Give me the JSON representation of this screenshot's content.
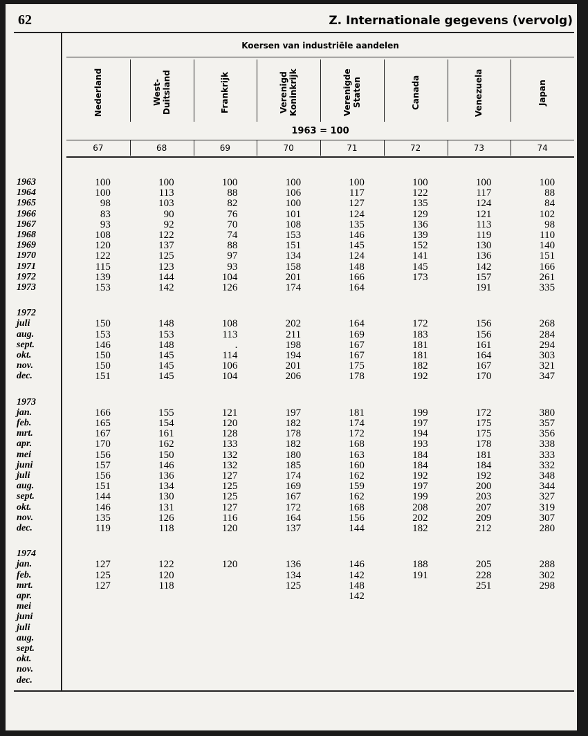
{
  "header": {
    "page_number": "62",
    "title": "Z. Internationale gegevens (vervolg)"
  },
  "table": {
    "group_heading": "Koersen van industriële aandelen",
    "base_note": "1963 = 100",
    "columns": [
      {
        "label": [
          "Nederland"
        ],
        "number": "67"
      },
      {
        "label": [
          "West-",
          "Duitsland"
        ],
        "number": "68"
      },
      {
        "label": [
          "Frankrijk"
        ],
        "number": "69"
      },
      {
        "label": [
          "Verenigd",
          "Koninkrijk"
        ],
        "number": "70"
      },
      {
        "label": [
          "Verenigde",
          "Staten"
        ],
        "number": "71"
      },
      {
        "label": [
          "Canada"
        ],
        "number": "72"
      },
      {
        "label": [
          "Venezuela"
        ],
        "number": "73"
      },
      {
        "label": [
          "Japan"
        ],
        "number": "74"
      }
    ],
    "groups": [
      {
        "label": null,
        "rows": [
          {
            "label": "1963",
            "values": [
              100,
              100,
              100,
              100,
              100,
              100,
              100,
              100
            ]
          },
          {
            "label": "1964",
            "values": [
              100,
              113,
              88,
              106,
              117,
              122,
              117,
              88
            ]
          },
          {
            "label": "1965",
            "values": [
              98,
              103,
              82,
              100,
              127,
              135,
              124,
              84
            ]
          },
          {
            "label": "1966",
            "values": [
              83,
              90,
              76,
              101,
              124,
              129,
              121,
              102
            ]
          },
          {
            "label": "1967",
            "values": [
              93,
              92,
              70,
              108,
              135,
              136,
              113,
              98
            ]
          },
          {
            "label": "1968",
            "values": [
              108,
              122,
              74,
              153,
              146,
              139,
              119,
              110
            ]
          },
          {
            "label": "1969",
            "values": [
              120,
              137,
              88,
              151,
              145,
              152,
              130,
              140
            ]
          },
          {
            "label": "1970",
            "values": [
              122,
              125,
              97,
              134,
              124,
              141,
              136,
              151
            ]
          },
          {
            "label": "1971",
            "values": [
              115,
              123,
              93,
              158,
              148,
              145,
              142,
              166
            ]
          },
          {
            "label": "1972",
            "values": [
              139,
              144,
              104,
              201,
              166,
              173,
              157,
              261
            ]
          },
          {
            "label": "1973",
            "values": [
              153,
              142,
              126,
              174,
              164,
              null,
              191,
              335
            ]
          }
        ]
      },
      {
        "label": "1972",
        "rows": [
          {
            "label": "juli",
            "values": [
              150,
              148,
              108,
              202,
              164,
              172,
              156,
              268
            ]
          },
          {
            "label": "aug.",
            "values": [
              153,
              153,
              113,
              211,
              169,
              183,
              156,
              284
            ]
          },
          {
            "label": "sept.",
            "values": [
              146,
              148,
              ".",
              198,
              167,
              181,
              161,
              294
            ]
          },
          {
            "label": "okt.",
            "values": [
              150,
              145,
              114,
              194,
              167,
              181,
              164,
              303
            ]
          },
          {
            "label": "nov.",
            "values": [
              150,
              145,
              106,
              201,
              175,
              182,
              167,
              321
            ]
          },
          {
            "label": "dec.",
            "values": [
              151,
              145,
              104,
              206,
              178,
              192,
              170,
              347
            ]
          }
        ]
      },
      {
        "label": "1973",
        "rows": [
          {
            "label": "jan.",
            "values": [
              166,
              155,
              121,
              197,
              181,
              199,
              172,
              380
            ]
          },
          {
            "label": "feb.",
            "values": [
              165,
              154,
              120,
              182,
              174,
              197,
              175,
              357
            ]
          },
          {
            "label": "mrt.",
            "values": [
              167,
              161,
              128,
              178,
              172,
              194,
              175,
              356
            ]
          },
          {
            "label": "apr.",
            "values": [
              170,
              162,
              133,
              182,
              168,
              193,
              178,
              338
            ]
          },
          {
            "label": "mei",
            "values": [
              156,
              150,
              132,
              180,
              163,
              184,
              181,
              333
            ]
          },
          {
            "label": "juni",
            "values": [
              157,
              146,
              132,
              185,
              160,
              184,
              184,
              332
            ]
          },
          {
            "label": "juli",
            "values": [
              156,
              136,
              127,
              174,
              162,
              192,
              192,
              348
            ]
          },
          {
            "label": "aug.",
            "values": [
              151,
              134,
              125,
              169,
              159,
              197,
              200,
              344
            ]
          },
          {
            "label": "sept.",
            "values": [
              144,
              130,
              125,
              167,
              162,
              199,
              203,
              327
            ]
          },
          {
            "label": "okt.",
            "values": [
              146,
              131,
              127,
              172,
              168,
              208,
              207,
              319
            ]
          },
          {
            "label": "nov.",
            "values": [
              135,
              126,
              116,
              164,
              156,
              202,
              209,
              307
            ]
          },
          {
            "label": "dec.",
            "values": [
              119,
              118,
              120,
              137,
              144,
              182,
              212,
              280
            ]
          }
        ]
      },
      {
        "label": "1974",
        "rows": [
          {
            "label": "jan.",
            "values": [
              127,
              122,
              120,
              136,
              146,
              188,
              205,
              288
            ]
          },
          {
            "label": "feb.",
            "values": [
              125,
              120,
              null,
              134,
              142,
              191,
              228,
              302
            ]
          },
          {
            "label": "mrt.",
            "values": [
              127,
              118,
              null,
              125,
              148,
              null,
              251,
              298
            ]
          },
          {
            "label": "apr.",
            "values": [
              null,
              null,
              null,
              null,
              142,
              null,
              null,
              null
            ]
          },
          {
            "label": "mei",
            "values": [
              null,
              null,
              null,
              null,
              null,
              null,
              null,
              null
            ]
          },
          {
            "label": "juni",
            "values": [
              null,
              null,
              null,
              null,
              null,
              null,
              null,
              null
            ]
          },
          {
            "label": "juli",
            "values": [
              null,
              null,
              null,
              null,
              null,
              null,
              null,
              null
            ]
          },
          {
            "label": "aug.",
            "values": [
              null,
              null,
              null,
              null,
              null,
              null,
              null,
              null
            ]
          },
          {
            "label": "sept.",
            "values": [
              null,
              null,
              null,
              null,
              null,
              null,
              null,
              null
            ]
          },
          {
            "label": "okt.",
            "values": [
              null,
              null,
              null,
              null,
              null,
              null,
              null,
              null
            ]
          },
          {
            "label": "nov.",
            "values": [
              null,
              null,
              null,
              null,
              null,
              null,
              null,
              null
            ]
          },
          {
            "label": "dec.",
            "values": [
              null,
              null,
              null,
              null,
              null,
              null,
              null,
              null
            ]
          }
        ]
      }
    ]
  }
}
